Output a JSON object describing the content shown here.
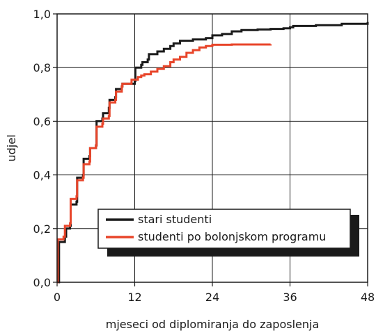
{
  "chart_data": {
    "type": "line",
    "xlabel": "mjeseci od diplomiranja do zaposlenja",
    "ylabel": "udjel",
    "xlim": [
      0,
      48
    ],
    "ylim": [
      0,
      1
    ],
    "x_ticks": [
      0,
      12,
      24,
      36,
      48
    ],
    "x_tick_labels": [
      "0",
      "12",
      "24",
      "36",
      "48"
    ],
    "y_ticks": [
      0,
      0.2,
      0.4,
      0.6,
      0.8,
      1.0
    ],
    "y_tick_labels": [
      "0,0",
      "0,2",
      "0,4",
      "0,6",
      "0,8",
      "1,0"
    ],
    "grid": true,
    "legend_position": "lower-right",
    "series": [
      {
        "name": "stari studenti",
        "color": "#1a1a1a",
        "step": true,
        "points": [
          [
            0,
            0
          ],
          [
            0.3,
            0.15
          ],
          [
            1.2,
            0.17
          ],
          [
            1.4,
            0.2
          ],
          [
            2,
            0.21
          ],
          [
            2.1,
            0.29
          ],
          [
            3,
            0.3
          ],
          [
            3.1,
            0.39
          ],
          [
            4,
            0.4
          ],
          [
            4.1,
            0.46
          ],
          [
            5,
            0.47
          ],
          [
            5.1,
            0.5
          ],
          [
            6,
            0.51
          ],
          [
            6.1,
            0.6
          ],
          [
            7,
            0.61
          ],
          [
            7.1,
            0.63
          ],
          [
            8,
            0.65
          ],
          [
            8.1,
            0.68
          ],
          [
            9,
            0.69
          ],
          [
            9.1,
            0.72
          ],
          [
            10,
            0.73
          ],
          [
            10.1,
            0.74
          ],
          [
            12,
            0.75
          ],
          [
            12.1,
            0.8
          ],
          [
            13,
            0.81
          ],
          [
            13.2,
            0.82
          ],
          [
            14,
            0.83
          ],
          [
            14.2,
            0.85
          ],
          [
            15.5,
            0.86
          ],
          [
            16.5,
            0.87
          ],
          [
            17.5,
            0.88
          ],
          [
            18,
            0.89
          ],
          [
            19,
            0.9
          ],
          [
            21,
            0.905
          ],
          [
            23,
            0.91
          ],
          [
            24,
            0.92
          ],
          [
            25.5,
            0.925
          ],
          [
            27,
            0.935
          ],
          [
            28.5,
            0.94
          ],
          [
            31,
            0.942
          ],
          [
            33,
            0.944
          ],
          [
            35,
            0.946
          ],
          [
            36,
            0.95
          ],
          [
            36.5,
            0.955
          ],
          [
            40,
            0.958
          ],
          [
            44,
            0.963
          ],
          [
            48,
            0.97
          ]
        ]
      },
      {
        "name": "studenti po bolonjskom programu",
        "color": "#e8452a",
        "step": true,
        "points": [
          [
            0,
            0
          ],
          [
            0.1,
            0.16
          ],
          [
            1,
            0.17
          ],
          [
            1.2,
            0.21
          ],
          [
            2,
            0.22
          ],
          [
            2.1,
            0.31
          ],
          [
            3,
            0.32
          ],
          [
            3.1,
            0.38
          ],
          [
            4,
            0.39
          ],
          [
            4.1,
            0.44
          ],
          [
            5,
            0.45
          ],
          [
            5.1,
            0.5
          ],
          [
            6,
            0.51
          ],
          [
            6.1,
            0.58
          ],
          [
            7,
            0.59
          ],
          [
            7.1,
            0.61
          ],
          [
            8,
            0.62
          ],
          [
            8.1,
            0.67
          ],
          [
            9,
            0.68
          ],
          [
            9.1,
            0.71
          ],
          [
            10,
            0.73
          ],
          [
            10.1,
            0.74
          ],
          [
            11.5,
            0.755
          ],
          [
            12.5,
            0.765
          ],
          [
            13,
            0.77
          ],
          [
            13.5,
            0.775
          ],
          [
            14.5,
            0.785
          ],
          [
            15.5,
            0.795
          ],
          [
            16.5,
            0.805
          ],
          [
            17.5,
            0.82
          ],
          [
            18,
            0.83
          ],
          [
            19,
            0.84
          ],
          [
            20,
            0.855
          ],
          [
            21,
            0.865
          ],
          [
            22,
            0.875
          ],
          [
            23,
            0.88
          ],
          [
            24,
            0.885
          ],
          [
            27,
            0.886
          ],
          [
            33,
            0.887
          ]
        ]
      }
    ]
  }
}
